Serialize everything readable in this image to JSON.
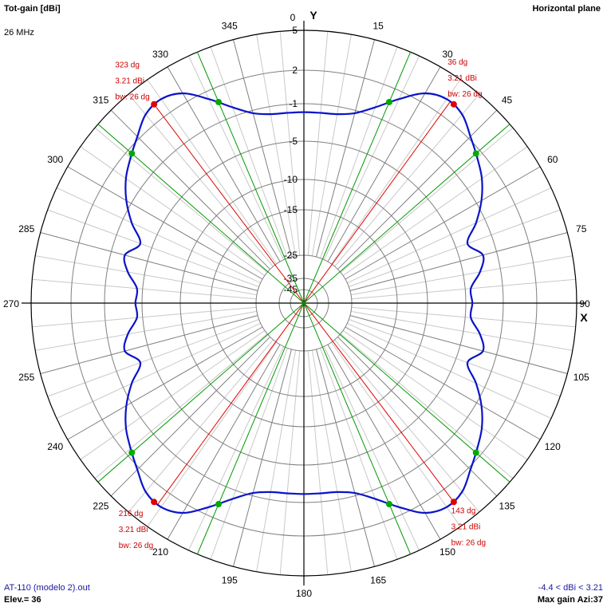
{
  "header": {
    "title": "Tot-gain [dBi]",
    "plane": "Horizontal plane",
    "frequency": "26 MHz"
  },
  "footer": {
    "filename": "AT-110 (modelo 2).out",
    "elevation": "Elev.= 36",
    "range": "-4.4 < dBi < 3.21",
    "max_gain": "Max gain Azi:37"
  },
  "chart_data": {
    "type": "polar",
    "title": "Tot-gain [dBi]",
    "x_axis_label": "X",
    "y_axis_label": "Y",
    "angle_ticks": [
      "0",
      "15",
      "30",
      "45",
      "60",
      "75",
      "90",
      "105",
      "120",
      "135",
      "150",
      "165",
      "180",
      "195",
      "210",
      "225",
      "240",
      "255",
      "270",
      "285",
      "300",
      "315",
      "330",
      "345"
    ],
    "radial_ticks": [
      {
        "label": "5",
        "value": 5
      },
      {
        "label": "2",
        "value": 2
      },
      {
        "label": "-1",
        "value": -1
      },
      {
        "label": "-5",
        "value": -5
      },
      {
        "label": "-10",
        "value": -10
      },
      {
        "label": "-15",
        "value": -15
      },
      {
        "label": "-25",
        "value": -25
      },
      {
        "label": "-35",
        "value": -35
      },
      {
        "label": "-45",
        "value": -45
      }
    ],
    "series": [
      {
        "color": "#0a14c8",
        "azimuth_deg": [
          0,
          5,
          10,
          15,
          20,
          25,
          30,
          35,
          40,
          45,
          50,
          55,
          60,
          65,
          70,
          75,
          80,
          85,
          90,
          95,
          100,
          105,
          110,
          115,
          120,
          125,
          130,
          135,
          140,
          145,
          150,
          155,
          160,
          165,
          170,
          175,
          180,
          185,
          190,
          195,
          200,
          205,
          210,
          215,
          220,
          225,
          230,
          235,
          240,
          245,
          250,
          255,
          260,
          265,
          270,
          275,
          280,
          285,
          290,
          295,
          300,
          305,
          310,
          315,
          320,
          325,
          330,
          335,
          340,
          345,
          350,
          355
        ],
        "gain_dbi": [
          -1.9,
          -1.9,
          -1.8,
          -1.3,
          -0.2,
          1.3,
          2.7,
          3.21,
          3.0,
          2.2,
          1.4,
          0.6,
          -0.5,
          -2.0,
          -3.7,
          -2.5,
          -3.2,
          -4.4,
          -4.3,
          -4.4,
          -3.2,
          -2.5,
          -3.7,
          -2.0,
          -0.5,
          0.6,
          1.4,
          2.2,
          3.0,
          3.21,
          2.7,
          1.3,
          -0.2,
          -1.3,
          -1.8,
          -1.9,
          -1.9,
          -1.9,
          -1.8,
          -1.3,
          -0.2,
          1.3,
          2.7,
          3.21,
          3.0,
          2.2,
          1.4,
          0.6,
          -0.5,
          -2.0,
          -3.7,
          -2.5,
          -3.2,
          -4.4,
          -4.3,
          -4.4,
          -3.2,
          -2.5,
          -3.7,
          -2.0,
          -0.5,
          0.6,
          1.4,
          2.2,
          3.0,
          3.21,
          2.7,
          1.3,
          -0.2,
          -1.3,
          -1.8,
          -1.9
        ]
      }
    ],
    "beam_markers": [
      {
        "azimuth": 37,
        "line_azimuth": 36,
        "gain": 3.21,
        "half_power_azimuths": [
          23,
          49
        ],
        "labels": [
          "36 dg",
          "3.21 dBi",
          "bw: 26 dg"
        ]
      },
      {
        "azimuth": 143,
        "line_azimuth": 143,
        "gain": 3.21,
        "half_power_azimuths": [
          131,
          157
        ],
        "labels": [
          "143 dg",
          "3.21 dBi",
          "bw: 26 dg"
        ]
      },
      {
        "azimuth": 217,
        "line_azimuth": 216,
        "gain": 3.21,
        "half_power_azimuths": [
          203,
          229
        ],
        "labels": [
          "216 dg",
          "3.21 dBi",
          "bw: 26 dg"
        ]
      },
      {
        "azimuth": 323,
        "line_azimuth": 323,
        "gain": 3.21,
        "half_power_azimuths": [
          311,
          337
        ],
        "labels": [
          "323 dg",
          "3.21 dBi",
          "bw: 26 dg"
        ]
      }
    ],
    "grid": true
  }
}
